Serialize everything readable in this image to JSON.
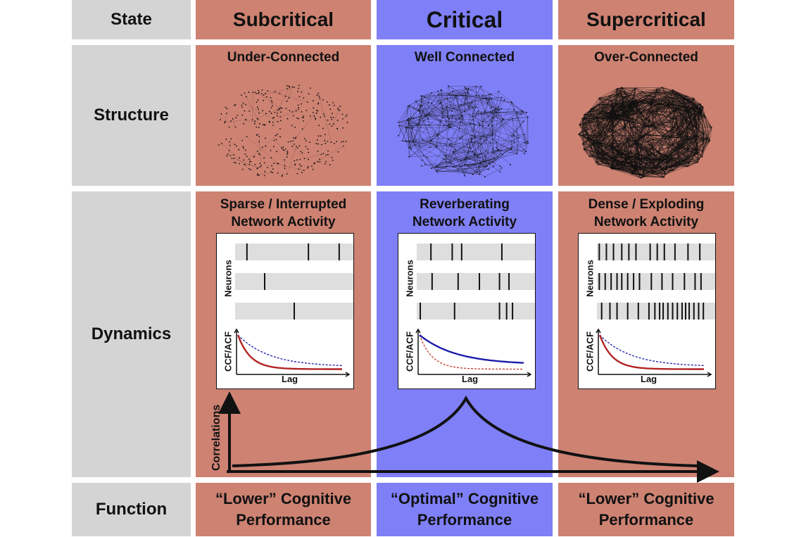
{
  "rows": {
    "state": "State",
    "structure": "Structure",
    "dynamics": "Dynamics",
    "function": "Function"
  },
  "states": [
    {
      "name": "Subcritical",
      "structure": "Under-Connected",
      "dynamics_line1": "Sparse / Interrupted",
      "dynamics_line2": "Network Activity",
      "function_line1": "“Lower” Cognitive",
      "function_line2": "Performance",
      "color": "#cd8272"
    },
    {
      "name": "Critical",
      "structure": "Well Connected",
      "dynamics_line1": "Reverberating",
      "dynamics_line2": "Network Activity",
      "function_line1": "“Optimal” Cognitive",
      "function_line2": "Performance",
      "color": "#7f7ff7"
    },
    {
      "name": "Supercritical",
      "structure": "Over-Connected",
      "dynamics_line1": "Dense / Exploding",
      "dynamics_line2": "Network Activity",
      "function_line1": "“Lower” Cognitive",
      "function_line2": "Performance",
      "color": "#cd8272"
    }
  ],
  "raster": {
    "ylabel": "Neurons",
    "spike_times": [
      [
        [
          0.1,
          0.62,
          0.88
        ],
        [
          0.25
        ],
        [
          0.5
        ]
      ],
      [
        [
          0.12,
          0.3,
          0.38,
          0.72
        ],
        [
          0.13,
          0.35,
          0.53,
          0.7,
          0.78
        ],
        [
          0.03,
          0.32,
          0.7,
          0.76,
          0.81
        ]
      ],
      [
        [
          0.02,
          0.08,
          0.14,
          0.21,
          0.27,
          0.33,
          0.45,
          0.51,
          0.57,
          0.66,
          0.77,
          0.87
        ],
        [
          0.02,
          0.07,
          0.12,
          0.17,
          0.21,
          0.26,
          0.31,
          0.36,
          0.46,
          0.55,
          0.64,
          0.74,
          0.83,
          0.88
        ],
        [
          0.04,
          0.11,
          0.17,
          0.26,
          0.35,
          0.44,
          0.49,
          0.53,
          0.56,
          0.6,
          0.64,
          0.68,
          0.72,
          0.75,
          0.78,
          0.82,
          0.86,
          0.9
        ]
      ]
    ]
  },
  "acf": {
    "ylabel": "CCF/ACF",
    "xlabel": "Lag",
    "solid_color": [
      "#b22222",
      "#1c1caa",
      "#b22222"
    ],
    "dashed_color": [
      "#1c1caa",
      "#c0392b",
      "#1c1caa"
    ]
  },
  "correlation": {
    "ylabel": "Correlations"
  }
}
